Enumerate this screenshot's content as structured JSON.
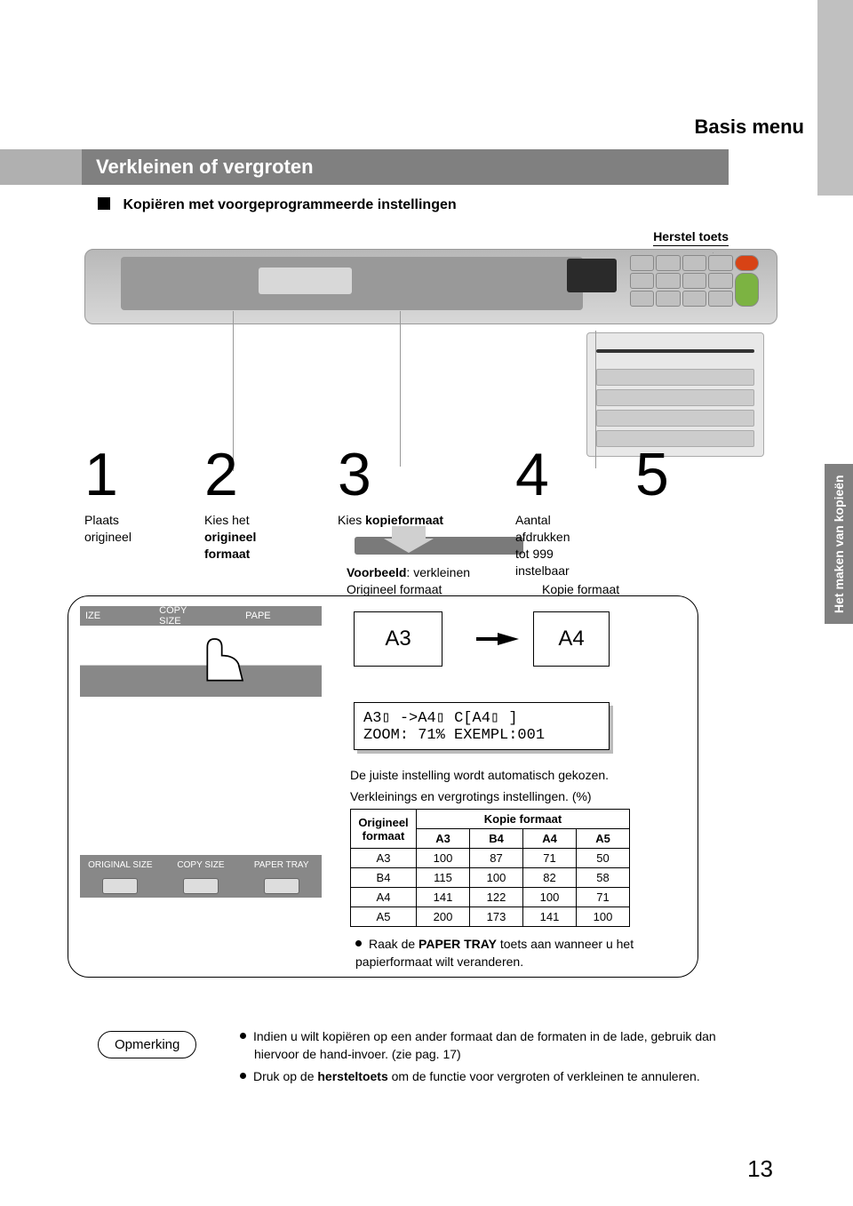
{
  "page": {
    "menu_title": "Basis menu",
    "bar_title": "Verkleinen of vergroten",
    "subheader": "Kopiëren met voorgeprogrammeerde instellingen",
    "herstel": "Herstel toets",
    "side_tab": "Het maken van kopieën",
    "page_number": "13"
  },
  "steps": {
    "s1_num": "1",
    "s1_txt": "Plaats\norigineel",
    "s2_num": "2",
    "s2_txt": "Kies het\norigineel\nformaat",
    "s3_num": "3",
    "s3_txt_a": "Kies ",
    "s3_txt_b": "kopieformaat",
    "s4_num": "4",
    "s4_txt": "Aantal\nafdrukken\ntot 999\ninstelbaar",
    "s5_num": "5"
  },
  "example": {
    "line1_a": "Voorbeeld",
    "line1_b": ": verkleinen",
    "orig_label": "Origineel formaat",
    "kopie_label": "Kopie formaat",
    "size_a": "A3",
    "size_b": "A4"
  },
  "panel1": {
    "l1": "IZE",
    "l2": "COPY SIZE",
    "l3": "PAPE"
  },
  "panel2": {
    "l1": "ORIGINAL SIZE",
    "l2": "COPY SIZE",
    "l3": "PAPER TRAY"
  },
  "lcd": {
    "line1": "A3▯ ->A4▯  C[A4▯ ]",
    "line2": "ZOOM: 71% EXEMPL:001"
  },
  "info": {
    "auto": "De juiste instelling wordt automatisch gekozen.",
    "scaling": "Verkleinings en vergrotings instellingen. (%)"
  },
  "table": {
    "row_header": "Origineel\nformaat",
    "col_header": "Kopie formaat",
    "cols": [
      "A3",
      "B4",
      "A4",
      "A5"
    ],
    "rows": [
      "A3",
      "B4",
      "A4",
      "A5"
    ],
    "data": [
      [
        100,
        87,
        71,
        50
      ],
      [
        115,
        100,
        82,
        58
      ],
      [
        141,
        122,
        100,
        71
      ],
      [
        200,
        173,
        141,
        100
      ]
    ],
    "widths": {
      "col_label": 74,
      "col_data": 60
    }
  },
  "tip": {
    "pre": "Raak de ",
    "bold": "PAPER TRAY",
    "post": " toets aan wanneer u het papierformaat wilt veranderen."
  },
  "note": {
    "label": "Opmerking",
    "b1_a": "Indien u wilt kopiëren op een ander formaat dan de formaten in de lade, gebruik dan hiervoor de hand-invoer. (zie pag. 17)",
    "b2_a": "Druk op de ",
    "b2_bold": "hersteltoets",
    "b2_b": " om de functie voor vergroten of verkleinen te annuleren."
  }
}
